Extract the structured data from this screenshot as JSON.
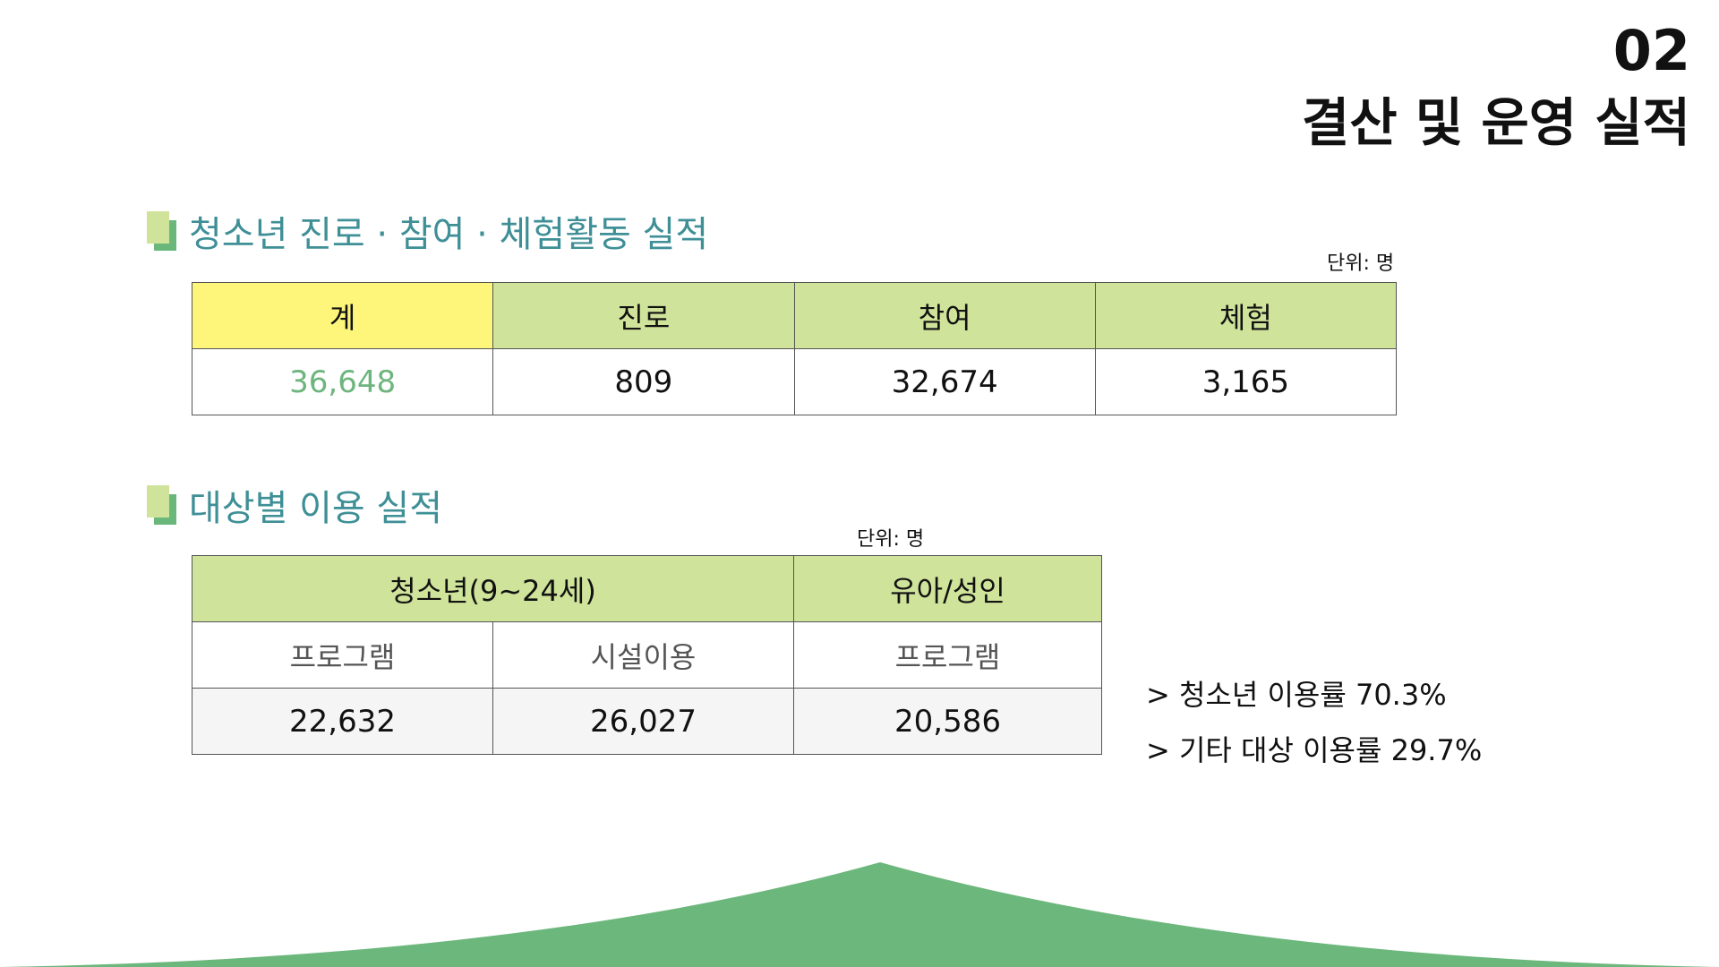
{
  "header": {
    "page_number": "02",
    "page_title": "결산 및 운영 실적"
  },
  "section1": {
    "title": "청소년 진로 · 참여 · 체험활동 실적",
    "unit": "단위: 명",
    "columns": [
      "계",
      "진로",
      "참여",
      "체험"
    ],
    "values": [
      "36,648",
      "809",
      "32,674",
      "3,165"
    ]
  },
  "section2": {
    "title": "대상별 이용 실적",
    "unit": "단위: 명",
    "group_headers": [
      "청소년(9~24세)",
      "유아/성인"
    ],
    "sub_headers": [
      "프로그램",
      "시설이용",
      "프로그램"
    ],
    "values": [
      "22,632",
      "26,027",
      "20,586"
    ]
  },
  "notes": [
    "> 청소년 이용률 70.3%",
    "> 기타 대상 이용률 29.7%"
  ],
  "colors": {
    "heading_teal": "#3e8f96",
    "header_green": "#cfe39a",
    "total_yellow": "#fdf67b",
    "total_value_green": "#6db57d",
    "hill_green": "#6cb77c"
  }
}
